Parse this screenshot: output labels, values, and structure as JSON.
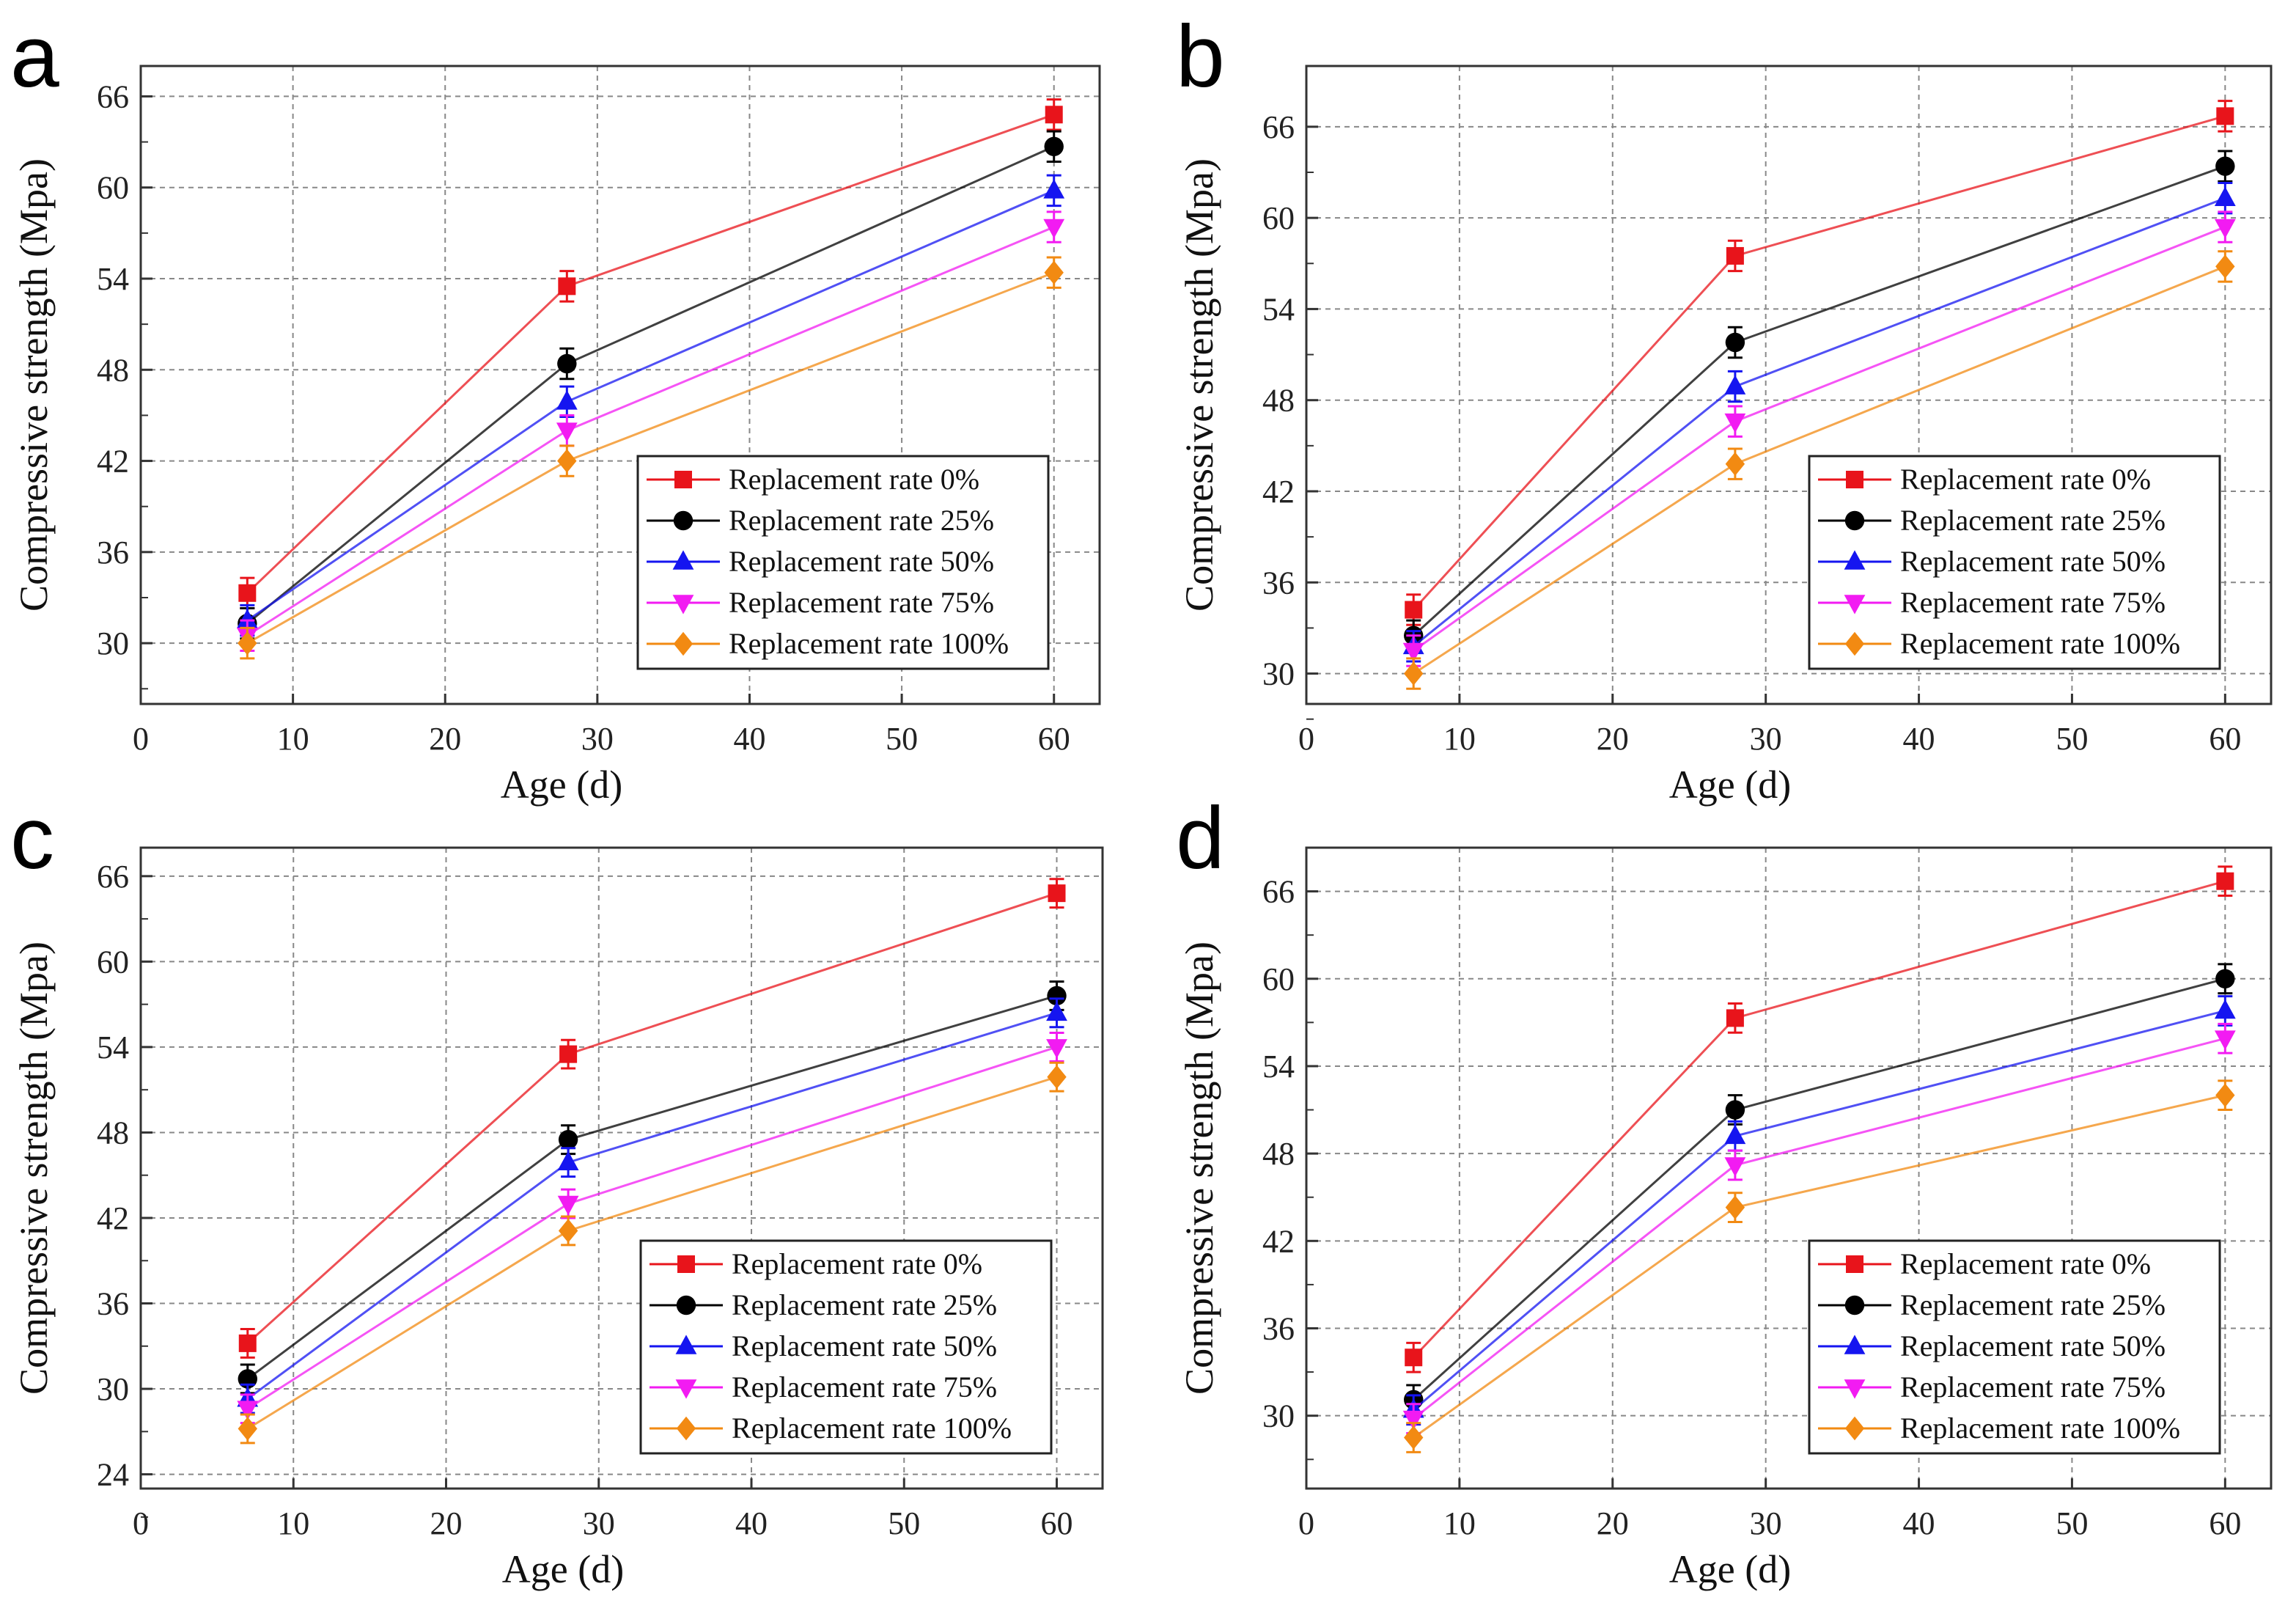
{
  "chart_data": [
    {
      "type": "line",
      "panel_label": "a",
      "xlabel": "Age (d)",
      "ylabel": "Compressive strength (Mpa)",
      "xlim": [
        0,
        63
      ],
      "ylim": [
        26,
        68
      ],
      "xticks": [
        0,
        10,
        20,
        30,
        40,
        50,
        60
      ],
      "yticks": [
        30,
        36,
        42,
        48,
        54,
        60,
        66
      ],
      "grid": true,
      "legend_position": "bottom-right",
      "error_bar": 1.0,
      "x": [
        7,
        28,
        60
      ],
      "series": [
        {
          "name": "Replacement rate 0%",
          "color": "#e8141b",
          "marker": "square",
          "values": [
            33.3,
            53.5,
            64.8
          ]
        },
        {
          "name": "Replacement rate 25%",
          "color": "#000000",
          "marker": "circle",
          "values": [
            31.3,
            48.4,
            62.7
          ]
        },
        {
          "name": "Replacement rate 50%",
          "color": "#1515f0",
          "marker": "triangle-up",
          "values": [
            31.5,
            45.9,
            59.8
          ]
        },
        {
          "name": "Replacement rate 75%",
          "color": "#f21bf2",
          "marker": "triangle-down",
          "values": [
            30.5,
            44.0,
            57.4
          ]
        },
        {
          "name": "Replacement rate 100%",
          "color": "#f28a12",
          "marker": "diamond",
          "values": [
            30.0,
            42.0,
            54.4
          ]
        }
      ]
    },
    {
      "type": "line",
      "panel_label": "b",
      "xlabel": "Age (d)",
      "ylabel": "Compressive strength (Mpa)",
      "xlim": [
        0,
        63
      ],
      "ylim": [
        28,
        70
      ],
      "xticks": [
        0,
        10,
        20,
        30,
        40,
        50,
        60
      ],
      "yticks": [
        30,
        36,
        42,
        48,
        54,
        60,
        66
      ],
      "grid": true,
      "legend_position": "bottom-right",
      "error_bar": 1.0,
      "x": [
        7,
        28,
        60
      ],
      "series": [
        {
          "name": "Replacement rate 0%",
          "color": "#e8141b",
          "marker": "square",
          "values": [
            34.2,
            57.5,
            66.7
          ]
        },
        {
          "name": "Replacement rate 25%",
          "color": "#000000",
          "marker": "circle",
          "values": [
            32.5,
            51.8,
            63.4
          ]
        },
        {
          "name": "Replacement rate 50%",
          "color": "#1515f0",
          "marker": "triangle-up",
          "values": [
            31.8,
            48.9,
            61.3
          ]
        },
        {
          "name": "Replacement rate 75%",
          "color": "#f21bf2",
          "marker": "triangle-down",
          "values": [
            31.5,
            46.6,
            59.4
          ]
        },
        {
          "name": "Replacement rate 100%",
          "color": "#f28a12",
          "marker": "diamond",
          "values": [
            30.0,
            43.8,
            56.8
          ]
        }
      ]
    },
    {
      "type": "line",
      "panel_label": "c",
      "xlabel": "Age (d)",
      "ylabel": "Compressive strength (Mpa)",
      "xlim": [
        0,
        63
      ],
      "ylim": [
        23,
        68
      ],
      "xticks": [
        0,
        10,
        20,
        30,
        40,
        50,
        60
      ],
      "yticks": [
        24,
        30,
        36,
        42,
        48,
        54,
        60,
        66
      ],
      "grid": true,
      "legend_position": "bottom-right",
      "error_bar": 1.0,
      "x": [
        7,
        28,
        60
      ],
      "series": [
        {
          "name": "Replacement rate 0%",
          "color": "#e8141b",
          "marker": "square",
          "values": [
            33.2,
            53.5,
            64.8
          ]
        },
        {
          "name": "Replacement rate 25%",
          "color": "#000000",
          "marker": "circle",
          "values": [
            30.7,
            47.5,
            57.6
          ]
        },
        {
          "name": "Replacement rate 50%",
          "color": "#1515f0",
          "marker": "triangle-up",
          "values": [
            29.3,
            45.9,
            56.4
          ]
        },
        {
          "name": "Replacement rate 75%",
          "color": "#f21bf2",
          "marker": "triangle-down",
          "values": [
            28.6,
            43.0,
            54.0
          ]
        },
        {
          "name": "Replacement rate 100%",
          "color": "#f28a12",
          "marker": "diamond",
          "values": [
            27.2,
            41.1,
            51.9
          ]
        }
      ]
    },
    {
      "type": "line",
      "panel_label": "d",
      "xlabel": "Age (d)",
      "ylabel": "Compressive strength (Mpa)",
      "xlim": [
        0,
        63
      ],
      "ylim": [
        25,
        69
      ],
      "xticks": [
        0,
        10,
        20,
        30,
        40,
        50,
        60
      ],
      "yticks": [
        30,
        36,
        42,
        48,
        54,
        60,
        66
      ],
      "grid": true,
      "legend_position": "bottom-right",
      "error_bar": 1.0,
      "x": [
        7,
        28,
        60
      ],
      "series": [
        {
          "name": "Replacement rate 0%",
          "color": "#e8141b",
          "marker": "square",
          "values": [
            34.0,
            57.3,
            66.7
          ]
        },
        {
          "name": "Replacement rate 25%",
          "color": "#000000",
          "marker": "circle",
          "values": [
            31.1,
            51.0,
            60.0
          ]
        },
        {
          "name": "Replacement rate 50%",
          "color": "#1515f0",
          "marker": "triangle-up",
          "values": [
            30.4,
            49.2,
            57.8
          ]
        },
        {
          "name": "Replacement rate 75%",
          "color": "#f21bf2",
          "marker": "triangle-down",
          "values": [
            29.8,
            47.2,
            55.9
          ]
        },
        {
          "name": "Replacement rate 100%",
          "color": "#f28a12",
          "marker": "diamond",
          "values": [
            28.5,
            44.3,
            52.0
          ]
        }
      ]
    }
  ]
}
